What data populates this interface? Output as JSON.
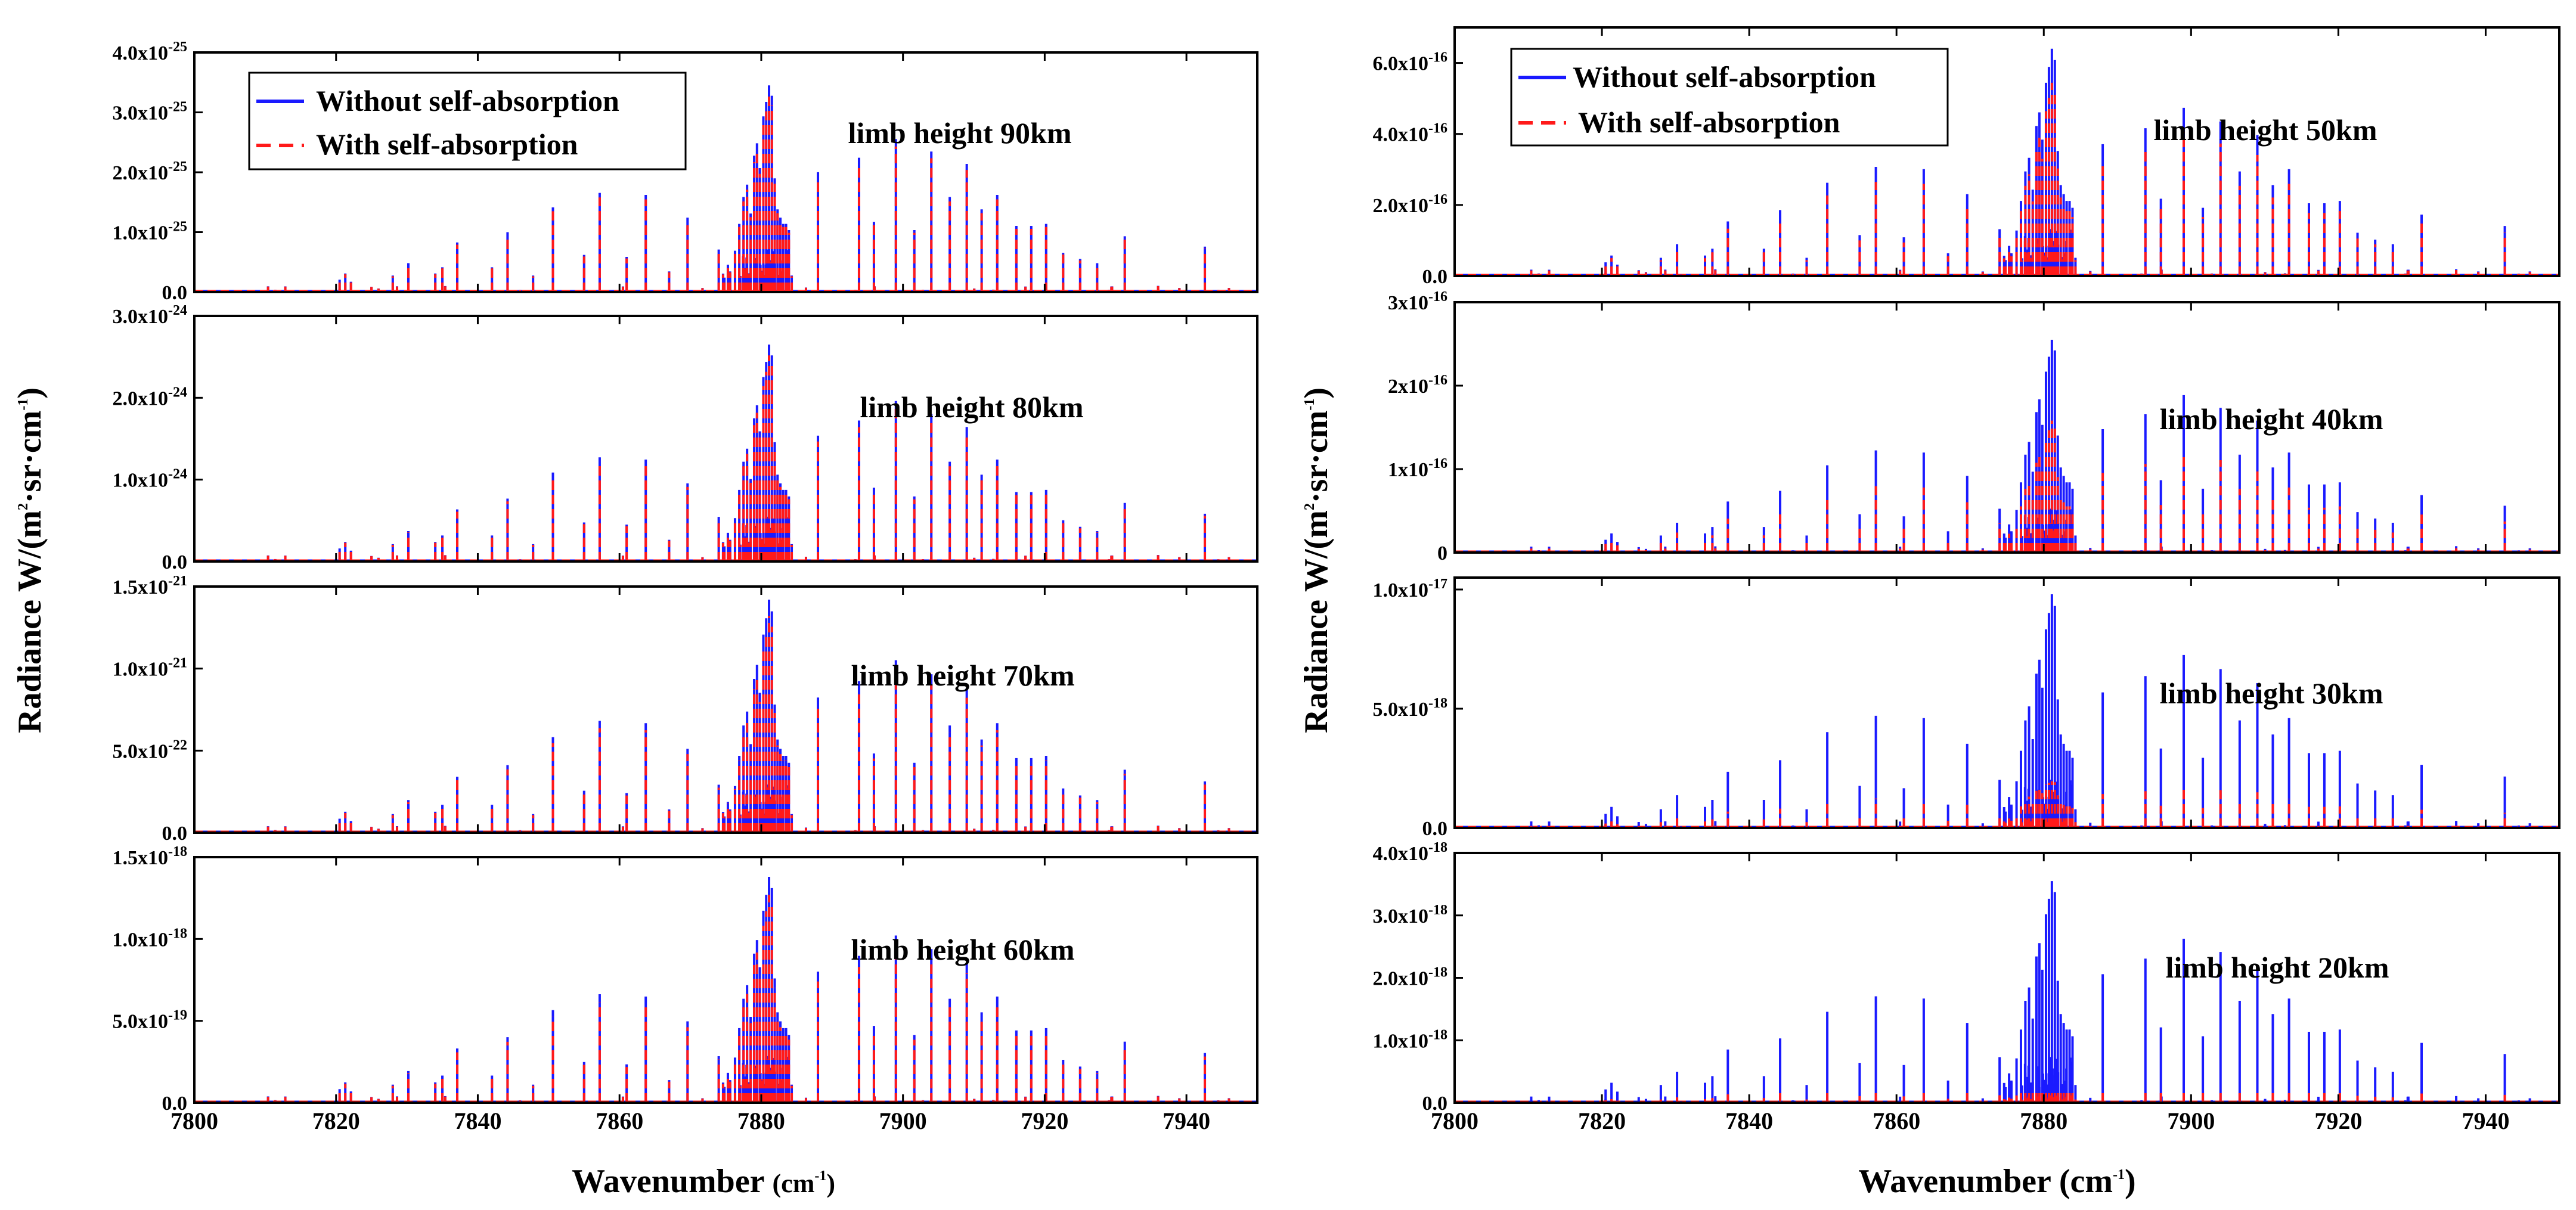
{
  "figure": {
    "left": {
      "ylabel_prefix": "Radiance W/(m",
      "ylabel_sup1": "2",
      "ylabel_mid": "·sr·cm",
      "ylabel_sup2": "-1",
      "ylabel_suffix": ")",
      "xlabel_prefix": "Wavenumber ",
      "xlabel_unit": "(cm",
      "xlabel_sup": "-1",
      "xlabel_suffix": ")"
    },
    "right": {
      "ylabel_prefix": "Radiance W/(m",
      "ylabel_sup1": "2",
      "ylabel_mid": "·sr·cm",
      "ylabel_sup2": "-1",
      "ylabel_suffix": ")",
      "xlabel_prefix": "Wavenumber ",
      "xlabel_unit": "(cm",
      "xlabel_sup": "-1",
      "xlabel_suffix": ")"
    }
  },
  "legend": {
    "series1": "Without self-absorption",
    "series2": "With self-absorption",
    "color1": "#1a1aff",
    "color2": "#ff1a1a"
  },
  "chart_data": [
    {
      "type": "line",
      "title": "limb height 90km",
      "xlim": [
        7800,
        7950
      ],
      "xticks": [
        "7800",
        "7820",
        "7840",
        "7860",
        "7880",
        "7900",
        "7920",
        "7940"
      ],
      "ylim": [
        0,
        4e-25
      ],
      "yticks": [
        {
          "m": "0.0",
          "e": ""
        },
        {
          "m": "1.0x10",
          "e": "-25"
        },
        {
          "m": "2.0x10",
          "e": "-25"
        },
        {
          "m": "3.0x10",
          "e": "-25"
        },
        {
          "m": "4.0x10",
          "e": "-25"
        }
      ],
      "peak": 3.45e-25,
      "self_absorption_ratio": 0.95,
      "series": [
        {
          "name": "Without self-absorption"
        },
        {
          "name": "With self-absorption"
        }
      ]
    },
    {
      "type": "line",
      "title": "limb height 80km",
      "xlim": [
        7800,
        7950
      ],
      "xticks": [
        "7800",
        "7820",
        "7840",
        "7860",
        "7880",
        "7900",
        "7920",
        "7940"
      ],
      "ylim": [
        0,
        3e-24
      ],
      "yticks": [
        {
          "m": "0.0",
          "e": ""
        },
        {
          "m": "1.0x10",
          "e": "-24"
        },
        {
          "m": "2.0x10",
          "e": "-24"
        },
        {
          "m": "3.0x10",
          "e": "-24"
        }
      ],
      "peak": 2.65e-24,
      "self_absorption_ratio": 0.95,
      "series": [
        {
          "name": "Without self-absorption"
        },
        {
          "name": "With self-absorption"
        }
      ]
    },
    {
      "type": "line",
      "title": "limb height 70km",
      "xlim": [
        7800,
        7950
      ],
      "xticks": [
        "7800",
        "7820",
        "7840",
        "7860",
        "7880",
        "7900",
        "7920",
        "7940"
      ],
      "ylim": [
        0,
        1.5e-21
      ],
      "yticks": [
        {
          "m": "0.0",
          "e": ""
        },
        {
          "m": "5.0x10",
          "e": "-22"
        },
        {
          "m": "1.0x10",
          "e": "-21"
        },
        {
          "m": "1.5x10",
          "e": "-21"
        }
      ],
      "peak": 1.42e-21,
      "self_absorption_ratio": 0.93,
      "series": [
        {
          "name": "Without self-absorption"
        },
        {
          "name": "With self-absorption"
        }
      ]
    },
    {
      "type": "line",
      "title": "limb height 60km",
      "xlim": [
        7800,
        7950
      ],
      "xticks": [
        "7800",
        "7820",
        "7840",
        "7860",
        "7880",
        "7900",
        "7920",
        "7940"
      ],
      "ylim": [
        0,
        1.5e-18
      ],
      "yticks": [
        {
          "m": "0.0",
          "e": ""
        },
        {
          "m": "5.0x10",
          "e": "-19"
        },
        {
          "m": "1.0x10",
          "e": "-18"
        },
        {
          "m": "1.5x10",
          "e": "-18"
        }
      ],
      "peak": 1.38e-18,
      "self_absorption_ratio": 0.92,
      "series": [
        {
          "name": "Without self-absorption"
        },
        {
          "name": "With self-absorption"
        }
      ]
    },
    {
      "type": "line",
      "title": "limb height 50km",
      "xlim": [
        7800,
        7950
      ],
      "xticks": [
        "7800",
        "7820",
        "7840",
        "7860",
        "7880",
        "7900",
        "7920",
        "7940"
      ],
      "ylim": [
        0,
        7e-16
      ],
      "yticks": [
        {
          "m": "0.0",
          "e": ""
        },
        {
          "m": "2.0x10",
          "e": "-16"
        },
        {
          "m": "4.0x10",
          "e": "-16"
        },
        {
          "m": "6.0x10",
          "e": "-16"
        }
      ],
      "peak": 6.4e-16,
      "self_absorption_ratio": 0.85,
      "series": [
        {
          "name": "Without self-absorption"
        },
        {
          "name": "With self-absorption"
        }
      ]
    },
    {
      "type": "line",
      "title": "limb height 40km",
      "xlim": [
        7800,
        7950
      ],
      "xticks": [
        "7800",
        "7820",
        "7840",
        "7860",
        "7880",
        "7900",
        "7920",
        "7940"
      ],
      "ylim": [
        0,
        3e-16
      ],
      "yticks": [
        {
          "m": "0",
          "e": ""
        },
        {
          "m": "1x10",
          "e": "-16"
        },
        {
          "m": "2x10",
          "e": "-16"
        },
        {
          "m": "3x10",
          "e": "-16"
        }
      ],
      "peak": 2.55e-16,
      "self_absorption_ratio": 0.62,
      "series": [
        {
          "name": "Without self-absorption"
        },
        {
          "name": "With self-absorption"
        }
      ]
    },
    {
      "type": "line",
      "title": "limb height 30km",
      "xlim": [
        7800,
        7950
      ],
      "xticks": [
        "7800",
        "7820",
        "7840",
        "7860",
        "7880",
        "7900",
        "7920",
        "7940"
      ],
      "ylim": [
        0,
        1.05e-17
      ],
      "yticks": [
        {
          "m": "0.0",
          "e": ""
        },
        {
          "m": "5.0x10",
          "e": "-18"
        },
        {
          "m": "1.0x10",
          "e": "-17"
        }
      ],
      "peak": 9.8e-18,
      "self_absorption_ratio": 0.2,
      "series": [
        {
          "name": "Without self-absorption"
        },
        {
          "name": "With self-absorption"
        }
      ]
    },
    {
      "type": "line",
      "title": "limb height 20km",
      "xlim": [
        7800,
        7950
      ],
      "xticks": [
        "7800",
        "7820",
        "7840",
        "7860",
        "7880",
        "7900",
        "7920",
        "7940"
      ],
      "ylim": [
        0,
        4e-18
      ],
      "yticks": [
        {
          "m": "0.0",
          "e": ""
        },
        {
          "m": "1.0x10",
          "e": "-18"
        },
        {
          "m": "2.0x10",
          "e": "-18"
        },
        {
          "m": "3.0x10",
          "e": "-18"
        },
        {
          "m": "4.0x10",
          "e": "-18"
        }
      ],
      "peak": 3.55e-18,
      "self_absorption_ratio": 0.05,
      "series": [
        {
          "name": "Without self-absorption"
        },
        {
          "name": "With self-absorption"
        }
      ]
    }
  ]
}
